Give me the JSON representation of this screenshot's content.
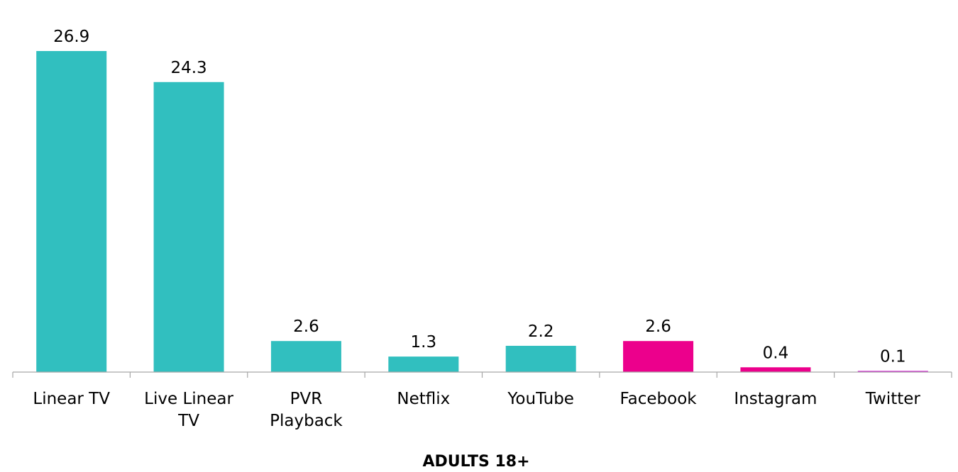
{
  "chart_data": {
    "type": "bar",
    "categories": [
      "Linear TV",
      "Live Linear TV",
      "PVR Playback",
      "Netflix",
      "YouTube",
      "Facebook",
      "Instagram",
      "Twitter"
    ],
    "category_lines": [
      [
        "Linear TV"
      ],
      [
        "Live Linear",
        "TV"
      ],
      [
        "PVR",
        "Playback"
      ],
      [
        "Netflix"
      ],
      [
        "YouTube"
      ],
      [
        "Facebook"
      ],
      [
        "Instagram"
      ],
      [
        "Twitter"
      ]
    ],
    "values": [
      26.9,
      24.3,
      2.6,
      1.3,
      2.2,
      2.6,
      0.4,
      0.1
    ],
    "value_labels": [
      "26.9",
      "24.3",
      "2.6",
      "1.3",
      "2.2",
      "2.6",
      "0.4",
      "0.1"
    ],
    "bar_colors": [
      "#31BFBF",
      "#31BFBF",
      "#31BFBF",
      "#31BFBF",
      "#31BFBF",
      "#EC008C",
      "#EC008C",
      "#D21FD2"
    ],
    "xlabel": "ADULTS 18+",
    "ylabel": "",
    "ylim": [
      0,
      30
    ],
    "grid": false,
    "legend": "none",
    "axis_color": "#A6A6A6"
  }
}
